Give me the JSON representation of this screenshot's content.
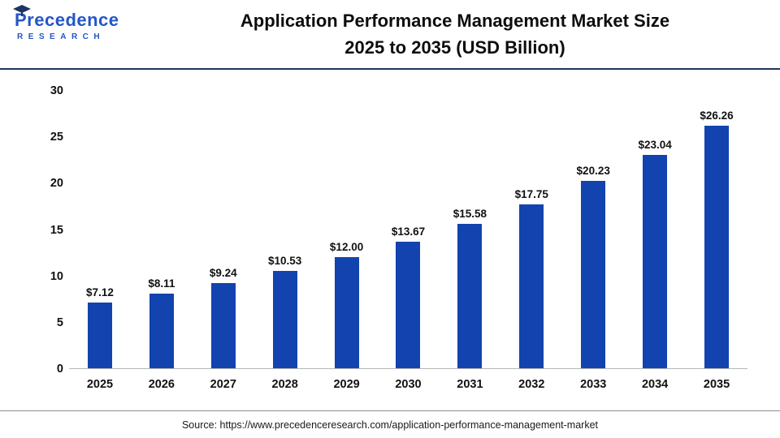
{
  "logo": {
    "line1": "Precedence",
    "line2": "RESEARCH"
  },
  "header": {
    "title_line1": "Application Performance Management Market Size",
    "title_line2": "2025 to 2035 (USD Billion)"
  },
  "chart_data": {
    "type": "bar",
    "title": "Application Performance Management Market Size 2025 to 2035 (USD Billion)",
    "categories": [
      "2025",
      "2026",
      "2027",
      "2028",
      "2029",
      "2030",
      "2031",
      "2032",
      "2033",
      "2034",
      "2035"
    ],
    "values": [
      7.12,
      8.11,
      9.24,
      10.53,
      12.0,
      13.67,
      15.58,
      17.75,
      20.23,
      23.04,
      26.26
    ],
    "value_labels": [
      "$7.12",
      "$8.11",
      "$9.24",
      "$10.53",
      "$12.00",
      "$13.67",
      "$15.58",
      "$17.75",
      "$20.23",
      "$23.04",
      "$26.26"
    ],
    "xlabel": "",
    "ylabel": "",
    "ylim": [
      0,
      30
    ],
    "y_ticks": [
      0,
      5,
      10,
      15,
      20,
      25,
      30
    ],
    "grid": false,
    "legend": false,
    "bar_color": "#1243ae"
  },
  "footer": {
    "source": "Source: https://www.precedenceresearch.com/application-performance-management-market"
  },
  "colors": {
    "bar": "#1243ae",
    "logo_blue": "#2456c6",
    "header_divider": "#1d3461",
    "footer_divider": "#8f8f8f",
    "text": "#111111"
  }
}
